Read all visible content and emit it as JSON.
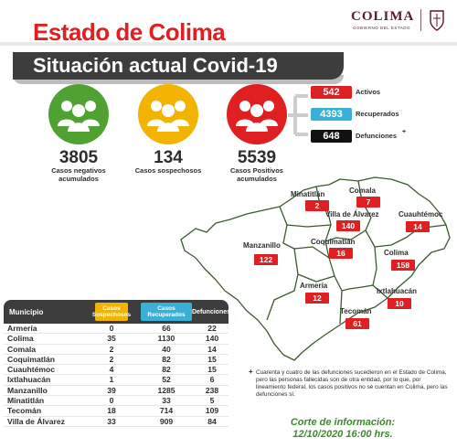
{
  "header": {
    "title": "Estado de Colima",
    "subtitle": "Situación actual Covid-19",
    "logo_text": "COLIMA",
    "logo_sub": "GOBIERNO DEL ESTADO"
  },
  "stats": [
    {
      "value": "3805",
      "label_line1": "Casos negativos",
      "label_line2": "acumulados",
      "color": "#4fa232"
    },
    {
      "value": "134",
      "label_line1": "Casos sospechosos",
      "label_line2": "",
      "color": "#f2b400"
    },
    {
      "value": "5539",
      "label_line1": "Casos Positivos",
      "label_line2": "acumulados",
      "color": "#e02020"
    }
  ],
  "right_stats": [
    {
      "value": "542",
      "label": "Activos",
      "color": "#e02020"
    },
    {
      "value": "4393",
      "label": "Recuperados",
      "color": "#3bb0d6"
    },
    {
      "value": "648",
      "label": "Defunciones",
      "color": "#111111"
    }
  ],
  "right_stats_plus": "+",
  "map": [
    {
      "name": "Minatitlán",
      "value": "2"
    },
    {
      "name": "Comala",
      "value": "7"
    },
    {
      "name": "Villa de Álvarez",
      "value": "140"
    },
    {
      "name": "Cuauhtémoc",
      "value": "14"
    },
    {
      "name": "Manzanillo",
      "value": "122"
    },
    {
      "name": "Coquimatlán",
      "value": "16"
    },
    {
      "name": "Colima",
      "value": "158"
    },
    {
      "name": "Armería",
      "value": "12"
    },
    {
      "name": "Ixtlahuacán",
      "value": "10"
    },
    {
      "name": "Tecomán",
      "value": "61"
    }
  ],
  "table": {
    "headers": {
      "municipio": "Municipio",
      "sospechosos": "Casos Sospechosos",
      "recuperados": "Casos Recuperados",
      "defunciones": "Defunciones"
    },
    "rows": [
      {
        "municipio": "Armería",
        "sospechosos": "0",
        "recuperados": "66",
        "defunciones": "22"
      },
      {
        "municipio": "Colima",
        "sospechosos": "35",
        "recuperados": "1130",
        "defunciones": "140"
      },
      {
        "municipio": "Comala",
        "sospechosos": "2",
        "recuperados": "40",
        "defunciones": "14"
      },
      {
        "municipio": "Coquimatlán",
        "sospechosos": "2",
        "recuperados": "82",
        "defunciones": "15"
      },
      {
        "municipio": "Cuauhtémoc",
        "sospechosos": "4",
        "recuperados": "82",
        "defunciones": "15"
      },
      {
        "municipio": "Ixtlahuacán",
        "sospechosos": "1",
        "recuperados": "52",
        "defunciones": "6"
      },
      {
        "municipio": "Manzanillo",
        "sospechosos": "39",
        "recuperados": "1285",
        "defunciones": "238"
      },
      {
        "municipio": "Minatitlán",
        "sospechosos": "0",
        "recuperados": "33",
        "defunciones": "5"
      },
      {
        "municipio": "Tecomán",
        "sospechosos": "18",
        "recuperados": "714",
        "defunciones": "109"
      },
      {
        "municipio": "Villa de Álvarez",
        "sospechosos": "33",
        "recuperados": "909",
        "defunciones": "84"
      }
    ]
  },
  "footnote": {
    "mark": "+",
    "text": "Cuarenta y cuatro de las defunciones sucedieron en el Estado de Colima, pero las personas fallecidas son de otra entidad, por lo que, por lineamiento federal, los casos positivos no se cuentan en Colima, pero las defunciones sí."
  },
  "cutoff": {
    "line1": "Corte de información:",
    "line2": "12/10/2020 16:00 hrs."
  }
}
